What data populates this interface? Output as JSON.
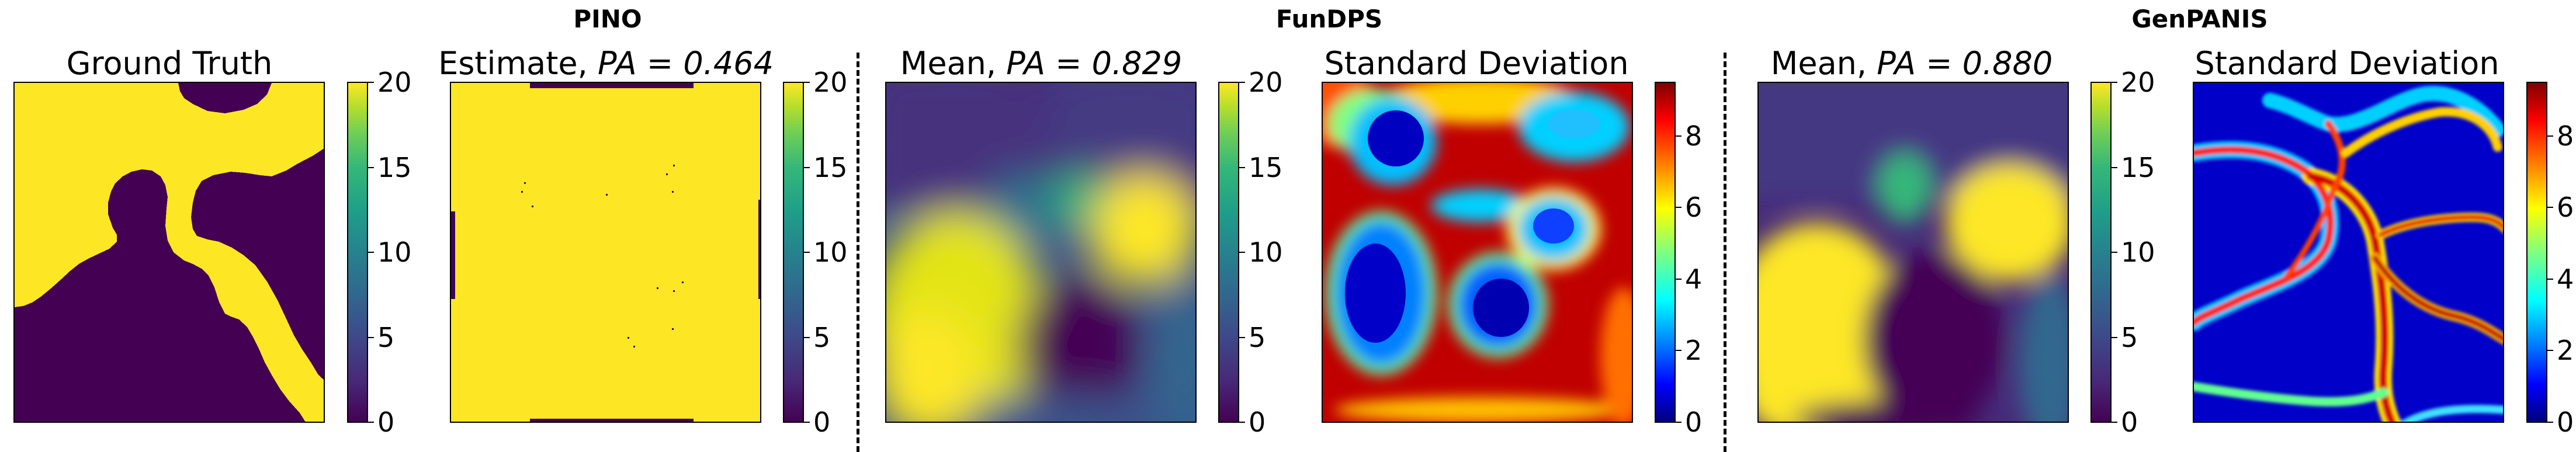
{
  "groups": [
    {
      "title": "PINO"
    },
    {
      "title": "FunDPS"
    },
    {
      "title": "GenPANIS"
    }
  ],
  "colors": {
    "viridis_low": "#440154",
    "viridis_high": "#fde725",
    "jet_low": "#00007f",
    "jet_high": "#7f0000"
  },
  "panels": [
    {
      "title_text": "Ground Truth",
      "title_pa": "",
      "colormap": "viridis",
      "field": "ground-truth-map"
    },
    {
      "title_text": "Estimate, ",
      "title_pa": "PA = 0.464",
      "colormap": "viridis",
      "field": "pino-estimate-map"
    },
    {
      "title_text": "Mean, ",
      "title_pa": "PA = 0.829",
      "colormap": "viridis",
      "field": "fundps-mean-map"
    },
    {
      "title_text": "Standard Deviation",
      "title_pa": "",
      "colormap": "jet",
      "field": "fundps-std-map"
    },
    {
      "title_text": "Mean, ",
      "title_pa": "PA = 0.880",
      "colormap": "viridis",
      "field": "genpanis-mean-map"
    },
    {
      "title_text": "Standard Deviation",
      "title_pa": "",
      "colormap": "jet",
      "field": "genpanis-std-map"
    }
  ],
  "chart_data": [
    {
      "type": "heatmap",
      "title": "Ground Truth",
      "colorbar_range": [
        0,
        20
      ],
      "colorbar_ticks": [
        "0",
        "5",
        "10",
        "15",
        "20"
      ],
      "colormap": "viridis",
      "values": "binary field: 0 (purple) and 20 (yellow)"
    },
    {
      "type": "heatmap",
      "title": "Estimate, PA = 0.464",
      "group": "PINO",
      "colorbar_range": [
        0,
        20
      ],
      "colorbar_ticks": [
        "0",
        "5",
        "10",
        "15",
        "20"
      ],
      "colormap": "viridis"
    },
    {
      "type": "heatmap",
      "title": "Mean, PA = 0.829",
      "group": "FunDPS",
      "colorbar_range": [
        0,
        20
      ],
      "colorbar_ticks": [
        "0",
        "5",
        "10",
        "15",
        "20"
      ],
      "colormap": "viridis"
    },
    {
      "type": "heatmap",
      "title": "Standard Deviation",
      "group": "FunDPS",
      "colorbar_range": [
        0,
        9.5
      ],
      "colorbar_ticks": [
        "0",
        "2",
        "4",
        "6",
        "8"
      ],
      "colormap": "jet"
    },
    {
      "type": "heatmap",
      "title": "Mean, PA = 0.880",
      "group": "GenPANIS",
      "colorbar_range": [
        0,
        20
      ],
      "colorbar_ticks": [
        "0",
        "5",
        "10",
        "15",
        "20"
      ],
      "colormap": "viridis"
    },
    {
      "type": "heatmap",
      "title": "Standard Deviation",
      "group": "GenPANIS",
      "colorbar_range": [
        0,
        9.5
      ],
      "colorbar_ticks": [
        "0",
        "2",
        "4",
        "6",
        "8"
      ],
      "colormap": "jet"
    }
  ]
}
